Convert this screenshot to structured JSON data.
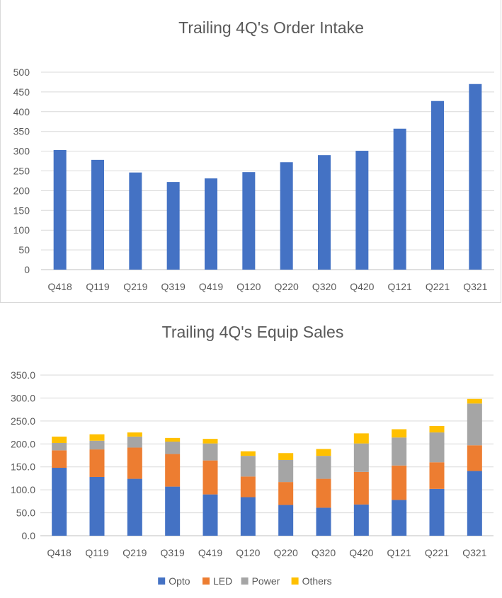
{
  "chart_data": [
    {
      "type": "bar",
      "title": "Trailing 4Q's Order Intake",
      "categories": [
        "Q418",
        "Q119",
        "Q219",
        "Q319",
        "Q419",
        "Q120",
        "Q220",
        "Q320",
        "Q420",
        "Q121",
        "Q221",
        "Q321"
      ],
      "values": [
        303,
        278,
        246,
        222,
        231,
        247,
        272,
        290,
        301,
        357,
        427,
        470
      ],
      "ylim": [
        0,
        500
      ],
      "yticks": [
        "0",
        "50",
        "100",
        "150",
        "200",
        "250",
        "300",
        "350",
        "400",
        "450",
        "500"
      ],
      "grid": true,
      "colors": {
        "bar": "#4472c4"
      }
    },
    {
      "type": "bar",
      "stacked": true,
      "title": "Trailing 4Q's Equip Sales",
      "categories": [
        "Q418",
        "Q119",
        "Q219",
        "Q319",
        "Q419",
        "Q120",
        "Q220",
        "Q320",
        "Q420",
        "Q121",
        "Q221",
        "Q321"
      ],
      "series": [
        {
          "name": "Opto",
          "color": "#4472c4",
          "values": [
            148,
            128,
            124,
            107,
            90,
            84,
            67,
            61,
            68,
            78,
            102,
            141
          ]
        },
        {
          "name": "LED",
          "color": "#ed7d31",
          "values": [
            38,
            60,
            68,
            71,
            74,
            45,
            50,
            63,
            71,
            75,
            58,
            56
          ]
        },
        {
          "name": "Power",
          "color": "#a5a5a5",
          "values": [
            16,
            19,
            24,
            27,
            37,
            45,
            48,
            50,
            62,
            61,
            65,
            91
          ]
        },
        {
          "name": "Others",
          "color": "#ffc000",
          "values": [
            14,
            14,
            9,
            8,
            10,
            10,
            15,
            15,
            22,
            18,
            14,
            10
          ]
        }
      ],
      "ylim": [
        0,
        350
      ],
      "yticks": [
        "0.0",
        "50.0",
        "100.0",
        "150.0",
        "200.0",
        "250.0",
        "300.0",
        "350.0"
      ],
      "grid": true,
      "legend": "bottom"
    }
  ]
}
